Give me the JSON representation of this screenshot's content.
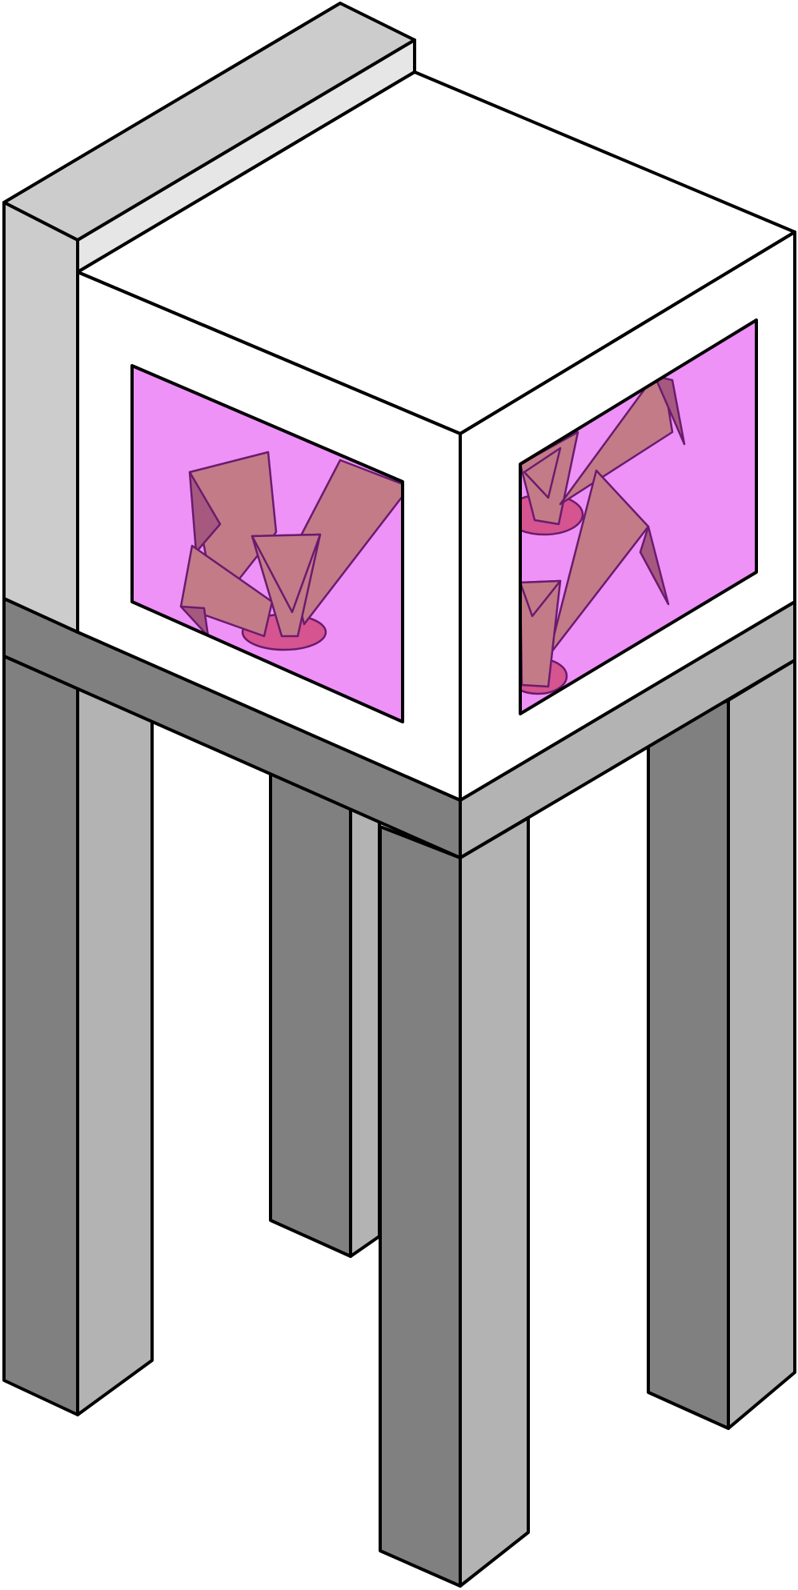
{
  "colors": {
    "frame_white": "#ffffff",
    "frame_light_gray": "#cccccc",
    "frame_lighter_gray": "#e6e6e6",
    "base_dark": "#808080",
    "base_light": "#b3b3b3",
    "glass": "#ee92f7",
    "crystal": "#c37b88",
    "crystal_dark": "#a6587f",
    "crystal_base": "#d6548f",
    "outline": "#000000"
  },
  "icons": [
    "ender-crystal-icon"
  ]
}
